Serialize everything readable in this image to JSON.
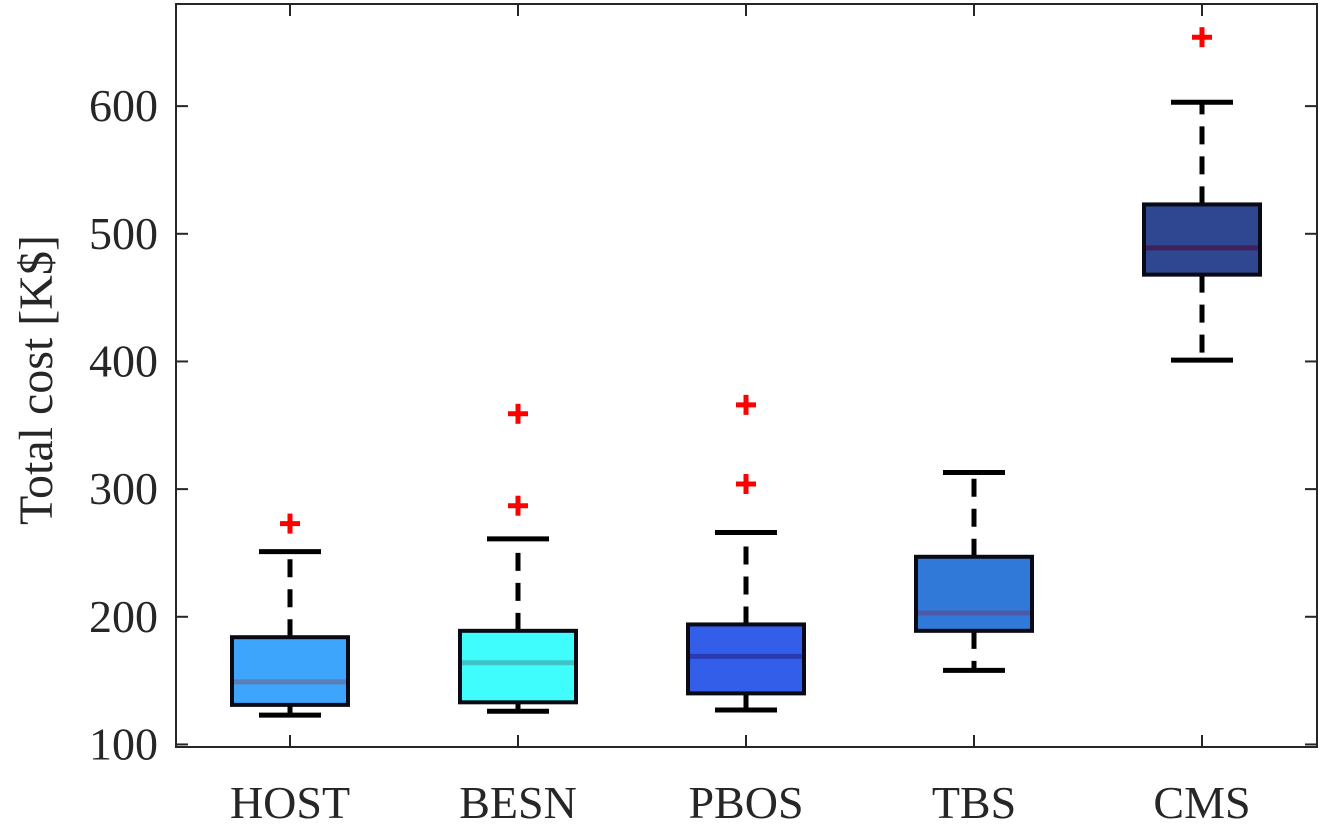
{
  "chart_data": {
    "type": "boxplot",
    "title": "",
    "xlabel": "",
    "ylabel": "Total cost [K$]",
    "ylim": [
      98,
      680
    ],
    "yticks": [
      100,
      200,
      300,
      400,
      500,
      600
    ],
    "grid": false,
    "categories": [
      "HOST",
      "BESN",
      "PBOS",
      "TBS",
      "CMS"
    ],
    "boxes": [
      {
        "name": "HOST",
        "min": 123,
        "q1": 131,
        "median": 149,
        "q3": 184,
        "max": 251,
        "outliers": [
          273
        ],
        "fill": "#3da5fb",
        "median_color": "#5a7fb8"
      },
      {
        "name": "BESN",
        "min": 126,
        "q1": 133,
        "median": 164,
        "q3": 189,
        "max": 261,
        "outliers": [
          287,
          359
        ],
        "fill": "#40fdfd",
        "median_color": "#3fc3c6"
      },
      {
        "name": "PBOS",
        "min": 127,
        "q1": 140,
        "median": 169,
        "q3": 194,
        "max": 266,
        "outliers": [
          304,
          366
        ],
        "fill": "#335ee9",
        "median_color": "#2a3bb2"
      },
      {
        "name": "TBS",
        "min": 158,
        "q1": 189,
        "median": 203,
        "q3": 247,
        "max": 313,
        "outliers": [],
        "fill": "#3079d9",
        "median_color": "#4c5aa8"
      },
      {
        "name": "CMS",
        "min": 401,
        "q1": 468,
        "median": 489,
        "q3": 523,
        "max": 603,
        "outliers": [
          654
        ],
        "fill": "#2f4790",
        "median_color": "#3f1f5c"
      }
    ],
    "outlier_color": "#ff0000",
    "outlier_marker": "+"
  }
}
